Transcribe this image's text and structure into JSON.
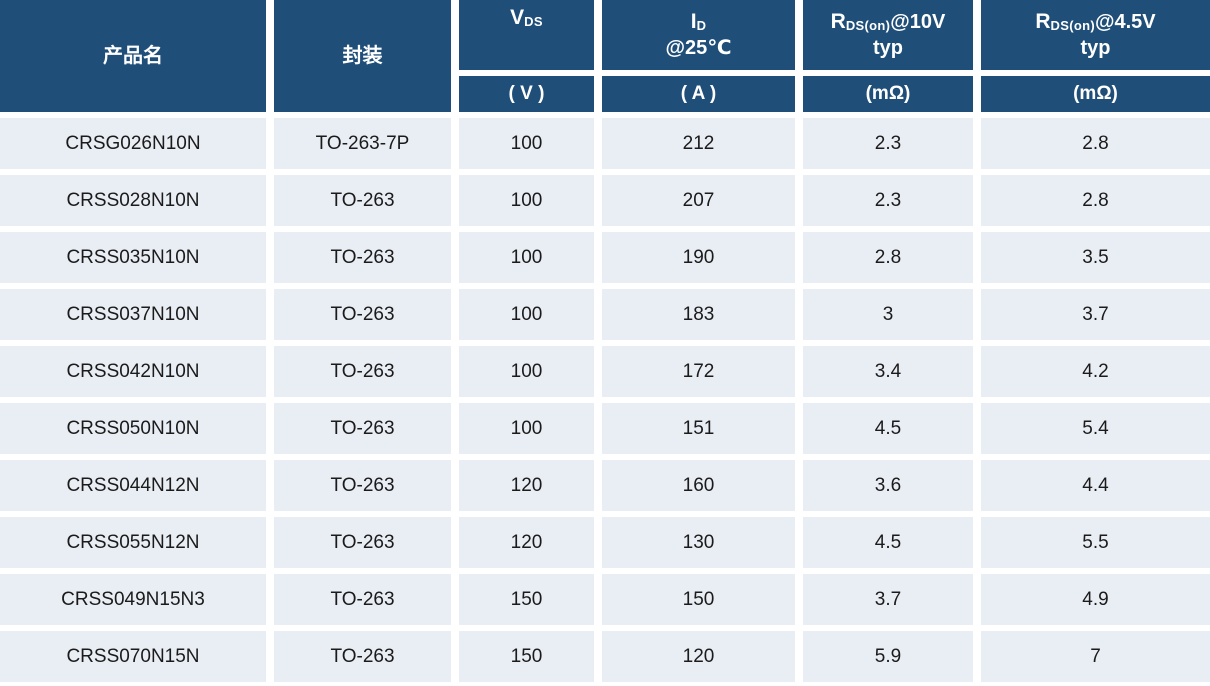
{
  "table": {
    "header": {
      "product": "产品名",
      "package": "封装",
      "vds": {
        "main": "V",
        "sub": "DS",
        "unit": "( V )"
      },
      "id": {
        "main": "I",
        "sub": "D",
        "line2": "@25℃",
        "unit": "( A )"
      },
      "rds10": {
        "main": "R",
        "sub": "DS(on)",
        "suffix": " @10V",
        "line2": "typ",
        "unit": "(mΩ)"
      },
      "rds45": {
        "main": "R",
        "sub": "DS(on)",
        "suffix": " @4.5V",
        "line2": "typ",
        "unit": "(mΩ)"
      }
    },
    "column_ids": [
      "product",
      "package",
      "vds",
      "id-25c",
      "rds-on-10v",
      "rds-on-4-5v"
    ],
    "rows": [
      [
        "CRSG026N10N",
        "TO-263-7P",
        "100",
        "212",
        "2.3",
        "2.8"
      ],
      [
        "CRSS028N10N",
        "TO-263",
        "100",
        "207",
        "2.3",
        "2.8"
      ],
      [
        "CRSS035N10N",
        "TO-263",
        "100",
        "190",
        "2.8",
        "3.5"
      ],
      [
        "CRSS037N10N",
        "TO-263",
        "100",
        "183",
        "3",
        "3.7"
      ],
      [
        "CRSS042N10N",
        "TO-263",
        "100",
        "172",
        "3.4",
        "4.2"
      ],
      [
        "CRSS050N10N",
        "TO-263",
        "100",
        "151",
        "4.5",
        "5.4"
      ],
      [
        "CRSS044N12N",
        "TO-263",
        "120",
        "160",
        "3.6",
        "4.4"
      ],
      [
        "CRSS055N12N",
        "TO-263",
        "120",
        "130",
        "4.5",
        "5.5"
      ],
      [
        "CRSS049N15N3",
        "TO-263",
        "150",
        "150",
        "3.7",
        "4.9"
      ],
      [
        "CRSS070N15N",
        "TO-263",
        "150",
        "120",
        "5.9",
        "7"
      ]
    ]
  },
  "colors": {
    "header_bg": "#1F4E79",
    "header_text": "#FFFFFF",
    "row_bg": "#E9EDF4",
    "body_text": "#1B1B1B",
    "gap": "#FFFFFF"
  }
}
